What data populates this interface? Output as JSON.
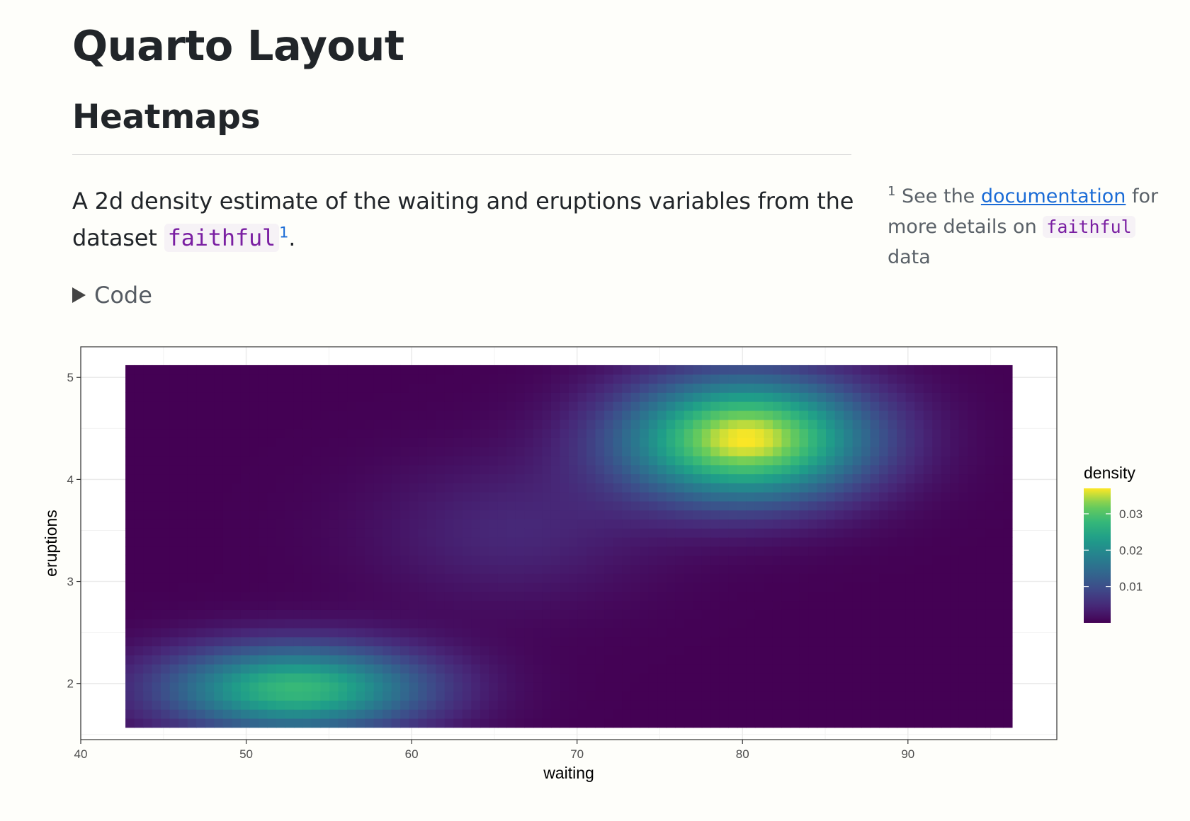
{
  "page": {
    "title": "Quarto Layout",
    "section_heading": "Heatmaps",
    "paragraph": {
      "before": "A 2d density estimate of the waiting and eruptions variables from the dataset ",
      "code": "faithful",
      "footnote_ref": "1",
      "after": "."
    },
    "code_toggle": "Code",
    "margin_note": {
      "marker": "1",
      "text_before": " See the ",
      "link_text": "documentation",
      "text_middle": " for more details on ",
      "code": "faithful",
      "text_after": " data"
    }
  },
  "chart_data": {
    "type": "heatmap",
    "xlabel": "waiting",
    "ylabel": "eruptions",
    "x_ticks": [
      40,
      50,
      60,
      70,
      80,
      90
    ],
    "y_ticks": [
      2,
      3,
      4,
      5
    ],
    "xlim": [
      40,
      99
    ],
    "ylim": [
      1.45,
      5.3
    ],
    "data_extent": {
      "x": [
        42.7,
        96.3
      ],
      "y": [
        1.57,
        5.12
      ]
    },
    "peaks": [
      {
        "x": 80.2,
        "y": 4.4,
        "density": 0.037
      },
      {
        "x": 53.0,
        "y": 1.95,
        "density": 0.028
      }
    ],
    "legend": {
      "title": "density",
      "ticks": [
        0.01,
        0.02,
        0.03
      ],
      "range": [
        0.0,
        0.037
      ],
      "placement": "right"
    },
    "colormap": "viridis",
    "colors": {
      "low": "#440154",
      "high": "#fde725"
    },
    "grid": true
  }
}
